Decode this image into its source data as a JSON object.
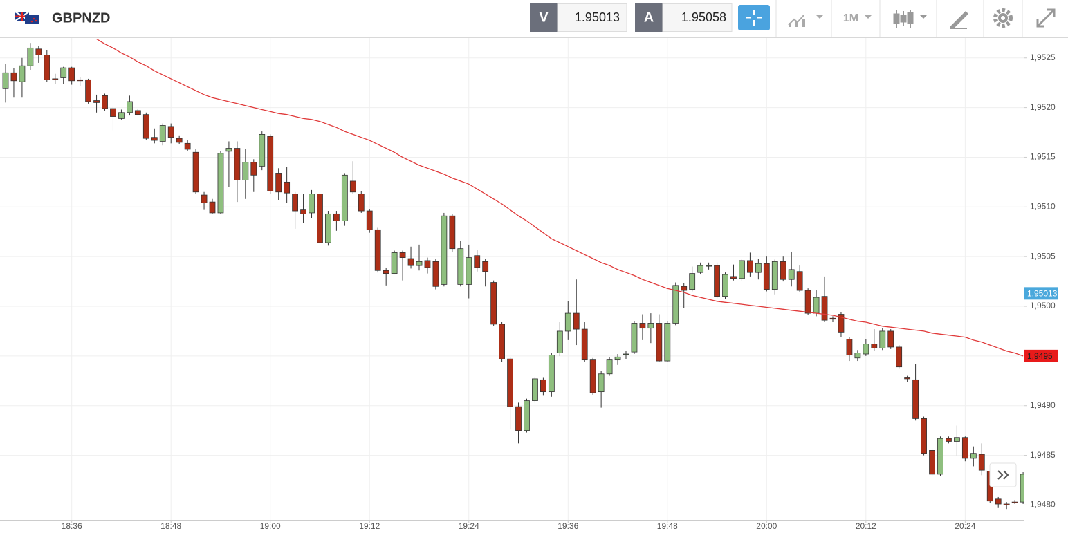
{
  "header": {
    "symbol": "GBPNZD",
    "bid_label": "V",
    "bid": "1.95013",
    "ask_label": "A",
    "ask": "1.95058",
    "timeframe": "1M"
  },
  "chart_data": {
    "type": "candlestick",
    "categories": [
      null,
      null,
      null,
      null,
      null,
      null,
      null,
      null,
      "18:36",
      null,
      null,
      null,
      null,
      null,
      null,
      null,
      null,
      null,
      null,
      null,
      "18:48",
      null,
      null,
      null,
      null,
      null,
      null,
      null,
      null,
      null,
      null,
      null,
      "19:00",
      null,
      null,
      null,
      null,
      null,
      null,
      null,
      null,
      null,
      null,
      null,
      "19:12",
      null,
      null,
      null,
      null,
      null,
      null,
      null,
      null,
      null,
      null,
      null,
      "19:24",
      null,
      null,
      null,
      null,
      null,
      null,
      null,
      null,
      null,
      null,
      null,
      "19:36",
      null,
      null,
      null,
      null,
      null,
      null,
      null,
      null,
      null,
      null,
      null,
      "19:48",
      null,
      null,
      null,
      null,
      null,
      null,
      null,
      null,
      null,
      null,
      null,
      "20:00",
      null,
      null,
      null,
      null,
      null,
      null,
      null,
      null,
      null,
      null,
      null,
      "20:12",
      null,
      null,
      null,
      null,
      null,
      null,
      null,
      null,
      null,
      null,
      null,
      "20:24",
      null,
      null,
      null,
      null,
      null,
      null,
      null
    ],
    "open": [
      1.95219,
      1.95235,
      1.95226,
      1.95242,
      1.95259,
      1.95253,
      1.95229,
      1.9523,
      1.9524,
      1.95228,
      1.95228,
      1.95207,
      1.95212,
      1.95199,
      1.95189,
      1.95195,
      1.95197,
      1.95193,
      1.9517,
      1.95166,
      1.95181,
      1.95169,
      1.95164,
      1.95155,
      1.95112,
      1.95105,
      1.95094,
      1.95156,
      1.95159,
      1.95127,
      1.95145,
      1.95141,
      1.95171,
      1.95134,
      1.95125,
      1.95113,
      1.95097,
      1.95094,
      1.95113,
      1.95064,
      1.95093,
      1.95086,
      1.95126,
      1.95113,
      1.95096,
      1.95077,
      1.95036,
      1.95033,
      1.95054,
      1.95048,
      1.95041,
      1.95046,
      1.95045,
      1.95022,
      1.95091,
      1.95022,
      1.95022,
      1.95051,
      1.95045,
      1.95024,
      1.94982,
      1.94947,
      1.94899,
      1.94875,
      1.94905,
      1.94926,
      1.94914,
      1.94953,
      1.94975,
      1.94993,
      1.94977,
      1.94946,
      1.94914,
      1.94932,
      1.94946,
      1.94952,
      1.94954,
      1.94983,
      1.94978,
      1.94983,
      1.94945,
      1.94983,
      1.9502,
      1.95017,
      1.95034,
      1.95041,
      1.95041,
      1.9501,
      1.9503,
      1.95028,
      1.95046,
      1.95034,
      1.95043,
      1.95017,
      1.95045,
      1.95027,
      1.95035,
      1.95016,
      1.94993,
      1.9501,
      1.94988,
      1.94992,
      1.94967,
      1.94948,
      1.94952,
      1.94962,
      1.94958,
      1.94975,
      1.94959,
      1.94928,
      1.94926,
      1.94887,
      1.94855,
      1.94831,
      1.94867,
      1.94864,
      1.94868,
      1.94847,
      1.94851,
      1.94834,
      1.94806,
      1.94801,
      1.94803,
      1.94803
    ],
    "high": [
      1.95244,
      1.9524,
      1.9525,
      1.95265,
      1.95262,
      1.95258,
      1.95234,
      1.95241,
      1.95241,
      1.95231,
      1.95229,
      1.95213,
      1.95214,
      1.95201,
      1.95198,
      1.95212,
      1.95199,
      1.95195,
      1.95179,
      1.95184,
      1.95184,
      1.95172,
      1.95167,
      1.95158,
      1.95115,
      1.95108,
      1.95156,
      1.95166,
      1.95166,
      1.95158,
      1.95148,
      1.95176,
      1.95173,
      1.95139,
      1.9514,
      1.95115,
      1.95113,
      1.95117,
      1.95115,
      1.95096,
      1.95096,
      1.95134,
      1.95146,
      1.95116,
      1.95098,
      1.95079,
      1.95039,
      1.95056,
      1.95056,
      1.9506,
      1.95062,
      1.95049,
      1.95048,
      1.95094,
      1.95093,
      1.95066,
      1.95062,
      1.95057,
      1.95048,
      1.95026,
      1.94984,
      1.94949,
      1.94903,
      1.94907,
      1.94929,
      1.94928,
      1.94953,
      1.94984,
      1.95005,
      1.95027,
      1.94984,
      1.94948,
      1.94935,
      1.94949,
      1.94952,
      1.94955,
      1.94985,
      1.94992,
      1.94993,
      1.94992,
      1.94985,
      1.95024,
      1.95023,
      1.9504,
      1.95044,
      1.95044,
      1.95044,
      1.95034,
      1.95042,
      1.95048,
      1.95054,
      1.95048,
      1.9505,
      1.95047,
      1.9505,
      1.95055,
      1.95041,
      1.95018,
      1.95016,
      1.9503,
      1.9499,
      1.94994,
      1.94969,
      1.94956,
      1.94967,
      1.94977,
      1.94978,
      1.94977,
      1.94961,
      1.9493,
      1.94942,
      1.94889,
      1.94857,
      1.94869,
      1.94869,
      1.9488,
      1.94869,
      1.94859,
      1.94862,
      1.94836,
      1.94808,
      1.94803,
      1.94805,
      1.94833
    ],
    "low": [
      1.95205,
      1.9521,
      1.9521,
      1.95238,
      1.95245,
      1.95226,
      1.95224,
      1.95224,
      1.95223,
      1.95222,
      1.95204,
      1.95195,
      1.95197,
      1.95177,
      1.95188,
      1.95192,
      1.95192,
      1.95167,
      1.95164,
      1.95162,
      1.95164,
      1.95163,
      1.95156,
      1.95113,
      1.95097,
      1.95093,
      1.95093,
      1.9512,
      1.95105,
      1.95108,
      1.95115,
      1.95137,
      1.95113,
      1.95107,
      1.95104,
      1.95078,
      1.95084,
      1.95089,
      1.95063,
      1.95061,
      1.95076,
      1.95081,
      1.95113,
      1.95094,
      1.95074,
      1.95034,
      1.95021,
      1.95032,
      1.95026,
      1.95038,
      1.95036,
      1.95033,
      1.95017,
      1.9502,
      1.95055,
      1.9502,
      1.95008,
      1.95035,
      1.9502,
      1.9498,
      1.94944,
      1.94876,
      1.94862,
      1.94873,
      1.94903,
      1.9491,
      1.94909,
      1.9495,
      1.94966,
      1.94961,
      1.94944,
      1.94911,
      1.94898,
      1.9493,
      1.94941,
      1.94947,
      1.94952,
      1.94966,
      1.94963,
      1.94944,
      1.94944,
      1.94981,
      1.94998,
      1.95015,
      1.95032,
      1.95037,
      1.95008,
      1.95007,
      1.95026,
      1.95025,
      1.9503,
      1.95027,
      1.95015,
      1.95012,
      1.95025,
      1.9502,
      1.95014,
      1.94991,
      1.9499,
      1.94984,
      1.94984,
      1.94969,
      1.94945,
      1.94945,
      1.9495,
      1.94955,
      1.94956,
      1.94957,
      1.94937,
      1.94924,
      1.94885,
      1.9485,
      1.94829,
      1.94829,
      1.94862,
      1.9485,
      1.94844,
      1.94839,
      1.9483,
      1.94802,
      1.94797,
      1.94796,
      1.94801,
      1.94801
    ],
    "close": [
      1.95235,
      1.95227,
      1.95242,
      1.9526,
      1.95253,
      1.95228,
      1.95228,
      1.9524,
      1.95227,
      1.95227,
      1.95206,
      1.95205,
      1.95199,
      1.95191,
      1.95195,
      1.95206,
      1.95193,
      1.95169,
      1.95167,
      1.95182,
      1.9517,
      1.95165,
      1.95158,
      1.95115,
      1.95104,
      1.95094,
      1.95154,
      1.95159,
      1.95127,
      1.95145,
      1.95132,
      1.95173,
      1.95116,
      1.95115,
      1.95114,
      1.95096,
      1.95093,
      1.95113,
      1.95064,
      1.95093,
      1.95086,
      1.95132,
      1.95115,
      1.95096,
      1.95077,
      1.95036,
      1.95033,
      1.95054,
      1.95049,
      1.95041,
      1.95045,
      1.95039,
      1.9502,
      1.95091,
      1.95058,
      1.95058,
      1.95049,
      1.95039,
      1.95035,
      1.94982,
      1.94947,
      1.94899,
      1.94875,
      1.94905,
      1.94927,
      1.94914,
      1.94951,
      1.94975,
      1.94993,
      1.94977,
      1.94946,
      1.94913,
      1.94932,
      1.94946,
      1.94949,
      1.94952,
      1.94983,
      1.94978,
      1.94983,
      1.94945,
      1.94983,
      1.95021,
      1.95016,
      1.95033,
      1.95041,
      1.95041,
      1.9501,
      1.95032,
      1.95028,
      1.95046,
      1.95034,
      1.95043,
      1.95017,
      1.95045,
      1.95027,
      1.95037,
      1.95016,
      1.94993,
      1.95009,
      1.94986,
      1.94987,
      1.94974,
      1.94951,
      1.94953,
      1.94962,
      1.94958,
      1.94975,
      1.94959,
      1.94939,
      1.94927,
      1.94887,
      1.94852,
      1.94831,
      1.94867,
      1.94864,
      1.94868,
      1.94847,
      1.94852,
      1.94835,
      1.94804,
      1.94801,
      1.948,
      1.94802,
      1.94831
    ],
    "up_color": "#8fbf7f",
    "down_color": "#ad2f17",
    "moving_average": {
      "color": "#e03a3a",
      "values": [
        null,
        null,
        null,
        null,
        null,
        null,
        null,
        null,
        null,
        null,
        null,
        1.95269,
        1.95264,
        1.9526,
        1.95255,
        1.95251,
        1.95246,
        1.95242,
        1.95237,
        1.95233,
        1.95229,
        1.95225,
        1.95221,
        1.95217,
        1.95213,
        1.9521,
        1.95208,
        1.95206,
        1.95204,
        1.95202,
        1.952,
        1.95198,
        1.95196,
        1.95194,
        1.95193,
        1.95191,
        1.95189,
        1.95188,
        1.95186,
        1.95183,
        1.9518,
        1.95176,
        1.95173,
        1.9517,
        1.95167,
        1.95163,
        1.95159,
        1.95155,
        1.9515,
        1.95146,
        1.95142,
        1.95139,
        1.95136,
        1.95133,
        1.95129,
        1.95126,
        1.95123,
        1.95118,
        1.95113,
        1.95108,
        1.95103,
        1.95097,
        1.95091,
        1.95086,
        1.9508,
        1.95074,
        1.95068,
        1.95064,
        1.9506,
        1.95056,
        1.95052,
        1.95048,
        1.95044,
        1.95041,
        1.95037,
        1.95034,
        1.95031,
        1.95027,
        1.95024,
        1.95021,
        1.95018,
        1.95016,
        1.95014,
        1.95011,
        1.95009,
        1.95007,
        1.95005,
        1.95004,
        1.95003,
        1.95002,
        1.95001,
        1.95,
        1.94999,
        1.94998,
        1.94997,
        1.94996,
        1.94995,
        1.94994,
        1.94993,
        1.94992,
        1.94991,
        1.94989,
        1.94987,
        1.94985,
        1.94984,
        1.94982,
        1.9498,
        1.94979,
        1.94978,
        1.94977,
        1.94976,
        1.94975,
        1.94973,
        1.94972,
        1.94971,
        1.9497,
        1.94969,
        1.94966,
        1.94964,
        1.94961,
        1.94958,
        1.94955,
        1.94953,
        1.9495
      ]
    },
    "ylim": [
      1.94785,
      1.9527
    ],
    "yticks": [
      {
        "value": 1.948,
        "label": "1,9480"
      },
      {
        "value": 1.9485,
        "label": "1,9485"
      },
      {
        "value": 1.949,
        "label": "1,9490"
      },
      {
        "value": 1.9495,
        "label": "1,9495"
      },
      {
        "value": 1.95,
        "label": "1,9500"
      },
      {
        "value": 1.9505,
        "label": "1,9505"
      },
      {
        "value": 1.951,
        "label": "1,9510"
      },
      {
        "value": 1.9515,
        "label": "1,9515"
      },
      {
        "value": 1.952,
        "label": "1,9520"
      },
      {
        "value": 1.9525,
        "label": "1,9525"
      }
    ],
    "price_tags": [
      {
        "value": 1.95013,
        "label": "1,95013",
        "color": "#4aa8dc"
      },
      {
        "value": 1.9495,
        "label": "1,9495",
        "color": "#e81a1a"
      }
    ],
    "grid": true
  }
}
